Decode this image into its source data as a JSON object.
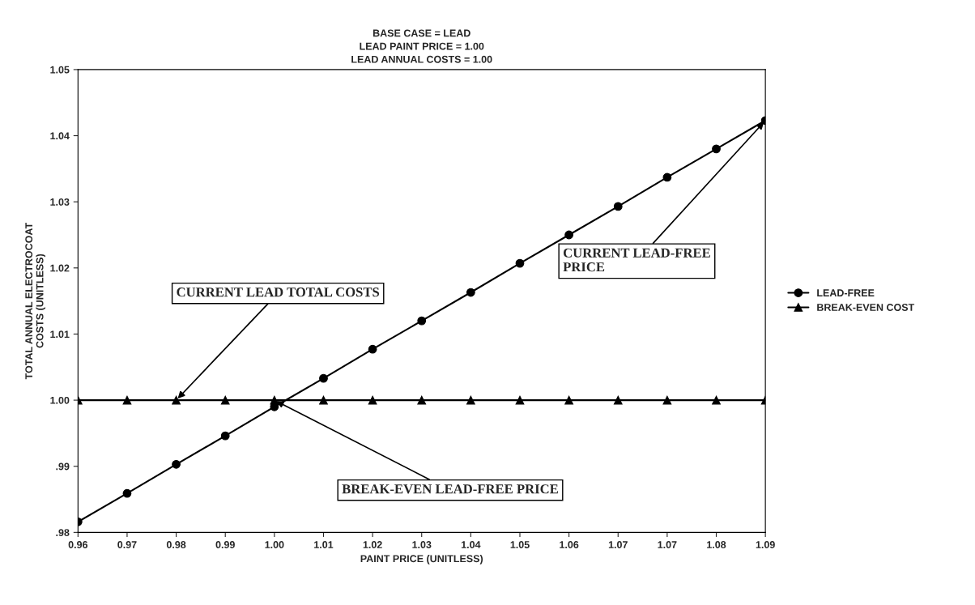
{
  "chart_data": {
    "type": "line",
    "title": "BASE CASE = LEAD\nLEAD PAINT PRICE = 1.00\nLEAD ANNUAL COSTS = 1.00",
    "xlabel": "PAINT PRICE (UNITLESS)",
    "ylabel": "TOTAL ANNUAL ELECTROCOAT\nCOSTS (UNITLESS)",
    "categories": [
      "0.96",
      "0.97",
      "0.98",
      "0.99",
      "1.00",
      "1.01",
      "1.02",
      "1.03",
      "1.04",
      "1.05",
      "1.06",
      "1.07",
      "1.07",
      "1.08",
      "1.09"
    ],
    "series": [
      {
        "name": "LEAD-FREE",
        "color": "#000000",
        "marker": "circle",
        "values": [
          0.9816,
          0.9859,
          0.9903,
          0.9946,
          0.999,
          1.0033,
          1.0077,
          1.012,
          1.0163,
          1.0207,
          1.025,
          1.0293,
          1.0337,
          1.038,
          1.0423
        ]
      },
      {
        "name": "BREAK-EVEN COST",
        "color": "#000000",
        "marker": "triangle",
        "values": [
          1.0,
          1.0,
          1.0,
          1.0,
          1.0,
          1.0,
          1.0,
          1.0,
          1.0,
          1.0,
          1.0,
          1.0,
          1.0,
          1.0,
          1.0
        ]
      }
    ],
    "ylim": [
      0.98,
      1.05
    ],
    "yticks": [
      {
        "value": 0.98,
        "label": ".98"
      },
      {
        "value": 0.99,
        "label": ".99"
      },
      {
        "value": 1.0,
        "label": "1.00"
      },
      {
        "value": 1.01,
        "label": "1.01"
      },
      {
        "value": 1.02,
        "label": "1.02"
      },
      {
        "value": 1.03,
        "label": "1.03"
      },
      {
        "value": 1.04,
        "label": "1.04"
      },
      {
        "value": 1.05,
        "label": "1.05"
      }
    ],
    "annotations": [
      {
        "text": "CURRENT LEAD TOTAL COSTS",
        "x": "0.98",
        "y": 1.0
      },
      {
        "text": "CURRENT LEAD-FREE\nPRICE",
        "x": "1.09",
        "y": 1.0423
      },
      {
        "text": "BREAK-EVEN LEAD-FREE PRICE",
        "x": "1.00",
        "y": 1.0
      }
    ],
    "legend": "right",
    "grid": false,
    "line_style": "solid"
  }
}
